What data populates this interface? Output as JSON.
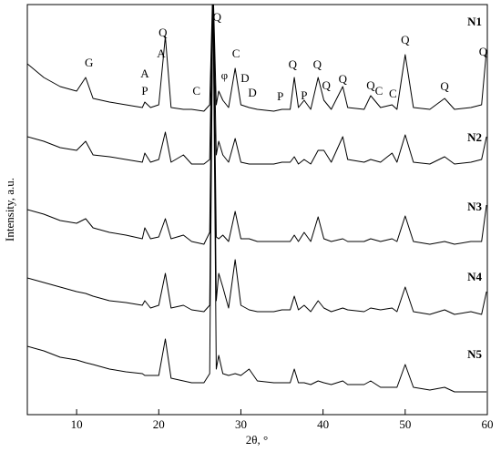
{
  "chart_data": {
    "type": "line",
    "x_label": "2θ, °",
    "y_label": "Intensity, a.u.",
    "xlim": [
      4,
      60
    ],
    "xticks": [
      10,
      20,
      30,
      40,
      50,
      60
    ],
    "ylim": [
      0,
      450
    ],
    "color": "#000000",
    "x": [
      4,
      6,
      8,
      10,
      11.1,
      12,
      14,
      16,
      18,
      18.3,
      19,
      20,
      20.8,
      21.5,
      23,
      24,
      25.5,
      26.2,
      26.6,
      27,
      27.3,
      27.8,
      28.5,
      29.3,
      30,
      31,
      32,
      34,
      35,
      36,
      36.5,
      37,
      37.7,
      38.5,
      39.4,
      40.1,
      41,
      42.4,
      43,
      45,
      45.8,
      47,
      48.4,
      49,
      50,
      51,
      53,
      54.8,
      56,
      58,
      59.3,
      59.9
    ],
    "series": [
      {
        "name": "N1",
        "values": [
          385,
          370,
          360,
          355,
          370,
          347,
          343,
          340,
          337,
          343,
          337,
          340,
          415,
          337,
          335,
          335,
          333,
          340,
          475,
          340,
          355,
          345,
          337,
          380,
          340,
          337,
          335,
          333,
          335,
          335,
          370,
          337,
          345,
          335,
          370,
          345,
          335,
          360,
          337,
          335,
          350,
          337,
          340,
          335,
          395,
          337,
          335,
          347,
          335,
          337,
          340,
          400
        ]
      },
      {
        "name": "N2",
        "values": [
          305,
          300,
          293,
          290,
          300,
          285,
          283,
          280,
          277,
          287,
          277,
          280,
          310,
          277,
          285,
          275,
          275,
          280,
          475,
          285,
          300,
          285,
          277,
          303,
          277,
          275,
          275,
          275,
          277,
          277,
          283,
          275,
          280,
          275,
          290,
          290,
          277,
          305,
          280,
          277,
          280,
          277,
          287,
          277,
          307,
          277,
          275,
          283,
          275,
          277,
          280,
          305
        ]
      },
      {
        "name": "N3",
        "values": [
          225,
          220,
          213,
          210,
          215,
          205,
          200,
          197,
          193,
          205,
          193,
          195,
          215,
          193,
          197,
          190,
          187,
          200,
          475,
          195,
          193,
          197,
          190,
          223,
          193,
          193,
          190,
          190,
          190,
          190,
          197,
          190,
          200,
          190,
          217,
          193,
          190,
          193,
          190,
          190,
          193,
          190,
          193,
          190,
          218,
          190,
          187,
          190,
          187,
          190,
          190,
          230
        ]
      },
      {
        "name": "N4",
        "values": [
          150,
          145,
          140,
          135,
          133,
          130,
          125,
          123,
          120,
          125,
          117,
          120,
          155,
          117,
          120,
          115,
          113,
          120,
          475,
          125,
          155,
          140,
          117,
          170,
          120,
          115,
          113,
          113,
          115,
          115,
          130,
          115,
          120,
          113,
          125,
          117,
          113,
          117,
          115,
          113,
          117,
          115,
          117,
          113,
          140,
          113,
          110,
          115,
          110,
          113,
          110,
          135
        ]
      },
      {
        "name": "N5",
        "values": [
          75,
          70,
          63,
          60,
          57,
          55,
          50,
          47,
          45,
          43,
          43,
          43,
          83,
          40,
          37,
          35,
          35,
          45,
          475,
          50,
          65,
          45,
          43,
          45,
          43,
          50,
          37,
          35,
          35,
          35,
          50,
          35,
          35,
          33,
          37,
          35,
          33,
          37,
          33,
          33,
          37,
          30,
          30,
          30,
          55,
          30,
          27,
          30,
          25,
          25,
          25,
          25
        ]
      }
    ],
    "annotations": [
      {
        "text": "G",
        "x": 11.5,
        "y": 385
      },
      {
        "text": "A",
        "x": 18.3,
        "y": 373
      },
      {
        "text": "P",
        "x": 18.3,
        "y": 354
      },
      {
        "text": "A",
        "x": 20.3,
        "y": 395
      },
      {
        "text": "Q",
        "x": 20.5,
        "y": 418
      },
      {
        "text": "C",
        "x": 24.6,
        "y": 354
      },
      {
        "text": "Q",
        "x": 27.1,
        "y": 435
      },
      {
        "text": "φ",
        "x": 28.0,
        "y": 371
      },
      {
        "text": "C",
        "x": 29.4,
        "y": 395
      },
      {
        "text": "D",
        "x": 30.5,
        "y": 368
      },
      {
        "text": "D",
        "x": 31.4,
        "y": 352
      },
      {
        "text": "P",
        "x": 34.8,
        "y": 348
      },
      {
        "text": "Q",
        "x": 36.3,
        "y": 383
      },
      {
        "text": "P",
        "x": 37.7,
        "y": 349
      },
      {
        "text": "Q",
        "x": 39.3,
        "y": 383
      },
      {
        "text": "Q",
        "x": 40.4,
        "y": 360
      },
      {
        "text": "Q",
        "x": 42.4,
        "y": 367
      },
      {
        "text": "Q",
        "x": 45.8,
        "y": 360
      },
      {
        "text": "C",
        "x": 46.8,
        "y": 354
      },
      {
        "text": "C",
        "x": 48.5,
        "y": 351
      },
      {
        "text": "Q",
        "x": 50.0,
        "y": 410
      },
      {
        "text": "Q",
        "x": 54.8,
        "y": 359
      },
      {
        "text": "Q",
        "x": 59.5,
        "y": 397
      }
    ]
  }
}
